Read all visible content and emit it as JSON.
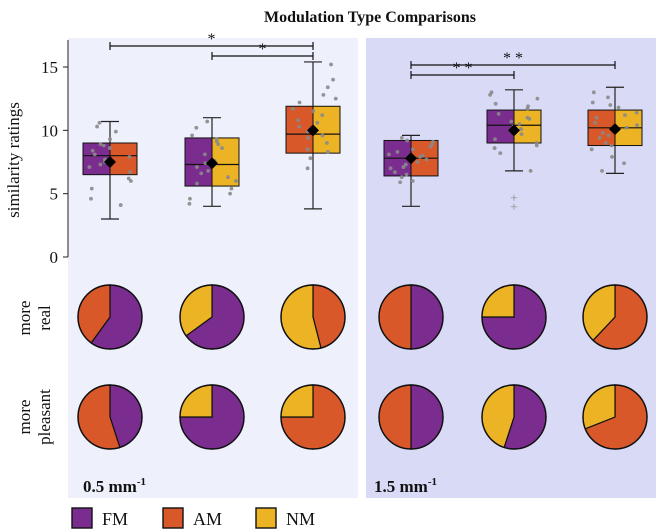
{
  "title": "Modulation Type Comparisons",
  "colors": {
    "FM": "#7b2d8f",
    "AM": "#d8582a",
    "NM": "#ecb425",
    "panel_left_bg": "#eef1fb",
    "panel_right_bg": "#d9dbf6",
    "whisker": "#222222",
    "points": "#8a8a8a",
    "outlier": "#8a8a8a"
  },
  "legend": [
    {
      "label": "FM",
      "color_key": "FM"
    },
    {
      "label": "AM",
      "color_key": "AM"
    },
    {
      "label": "NM",
      "color_key": "NM"
    }
  ],
  "row_labels": {
    "real": [
      "more",
      "real"
    ],
    "pleasant": [
      "more",
      "pleasant"
    ]
  },
  "chart_data": {
    "type": "box",
    "title": "Modulation Type Comparisons",
    "ylabel": "similarity ratings",
    "ylim": [
      0,
      15
    ],
    "yticks": [
      "0",
      "5",
      "10",
      "15"
    ],
    "panels": [
      {
        "label_main": "0.5 mm",
        "label_sup": "-1",
        "boxes": [
          {
            "pair": "FM vs AM",
            "left": "FM",
            "right": "AM",
            "whisker_low": 3.0,
            "q1": 6.5,
            "median": 8.0,
            "q3": 9.0,
            "whisker_high": 10.7,
            "mean": 7.5,
            "outliers": [],
            "points": [
              6.2,
              6.7,
              7.1,
              7.5,
              7.9,
              8.4,
              8.8,
              9.3,
              9.9,
              10.3,
              5.4,
              6.0,
              7.7,
              8.1,
              8.6,
              10.6,
              4.6,
              4.1,
              8.9,
              7.3
            ]
          },
          {
            "pair": "FM vs NM",
            "left": "FM",
            "right": "NM",
            "whisker_low": 4.0,
            "q1": 5.6,
            "median": 7.3,
            "q3": 9.4,
            "whisker_high": 11.0,
            "mean": 7.4,
            "outliers": [],
            "points": [
              4.2,
              5.0,
              5.8,
              6.3,
              6.8,
              7.1,
              7.6,
              8.1,
              8.6,
              9.1,
              9.6,
              10.2,
              10.7,
              4.6,
              6.0,
              7.4,
              8.9,
              9.3,
              5.4,
              6.6
            ]
          },
          {
            "pair": "AM vs NM",
            "left": "AM",
            "right": "NM",
            "whisker_low": 3.8,
            "q1": 8.2,
            "median": 9.7,
            "q3": 11.9,
            "whisker_high": 15.4,
            "mean": 10.0,
            "outliers": [],
            "points": [
              7.0,
              7.8,
              8.5,
              9.0,
              9.4,
              9.9,
              10.3,
              10.8,
              11.2,
              11.7,
              12.2,
              12.8,
              13.4,
              14.0,
              15.2,
              8.3,
              9.6,
              10.6,
              11.5,
              12.5
            ]
          }
        ],
        "significance": [
          {
            "from": 0,
            "to": 2,
            "label": "*",
            "level": 2
          },
          {
            "from": 1,
            "to": 2,
            "label": "*",
            "level": 1
          }
        ],
        "pies_real": [
          {
            "segments": [
              {
                "key": "FM",
                "value": 0.6
              },
              {
                "key": "AM",
                "value": 0.4
              }
            ]
          },
          {
            "segments": [
              {
                "key": "FM",
                "value": 0.65
              },
              {
                "key": "NM",
                "value": 0.35
              }
            ]
          },
          {
            "segments": [
              {
                "key": "AM",
                "value": 0.46
              },
              {
                "key": "NM",
                "value": 0.54
              }
            ]
          }
        ],
        "pies_pleasant": [
          {
            "segments": [
              {
                "key": "FM",
                "value": 0.45
              },
              {
                "key": "AM",
                "value": 0.55
              }
            ]
          },
          {
            "segments": [
              {
                "key": "FM",
                "value": 0.75
              },
              {
                "key": "NM",
                "value": 0.25
              }
            ]
          },
          {
            "segments": [
              {
                "key": "AM",
                "value": 0.75
              },
              {
                "key": "NM",
                "value": 0.25
              }
            ]
          }
        ]
      },
      {
        "label_main": "1.5 mm",
        "label_sup": "-1",
        "boxes": [
          {
            "pair": "FM vs AM",
            "left": "FM",
            "right": "AM",
            "whisker_low": 4.0,
            "q1": 6.4,
            "median": 7.8,
            "q3": 9.2,
            "whisker_high": 9.6,
            "mean": 7.8,
            "outliers": [],
            "points": [
              5.9,
              6.3,
              6.7,
              7.1,
              7.5,
              7.9,
              8.3,
              8.7,
              9.1,
              9.4,
              6.0,
              7.3,
              8.1,
              8.9,
              6.5,
              7.7,
              8.5,
              9.2,
              7.0,
              8.0
            ]
          },
          {
            "pair": "FM vs NM",
            "left": "FM",
            "right": "NM",
            "whisker_low": 6.8,
            "q1": 9.0,
            "median": 10.4,
            "q3": 11.6,
            "whisker_high": 13.2,
            "mean": 10.0,
            "outliers": [
              4.7,
              4.0
            ],
            "points": [
              6.8,
              8.2,
              8.8,
              9.3,
              9.7,
              10.1,
              10.5,
              10.9,
              11.3,
              11.7,
              12.1,
              12.5,
              13.0,
              9.0,
              10.3,
              11.0,
              11.9,
              8.6,
              10.7,
              12.8
            ]
          },
          {
            "pair": "AM vs NM",
            "left": "AM",
            "right": "NM",
            "whisker_low": 6.6,
            "q1": 8.8,
            "median": 10.2,
            "q3": 11.6,
            "whisker_high": 13.4,
            "mean": 10.1,
            "outliers": [],
            "points": [
              6.8,
              7.9,
              8.5,
              9.0,
              9.4,
              9.8,
              10.2,
              10.6,
              11.0,
              11.4,
              11.8,
              12.2,
              12.6,
              13.0,
              8.8,
              9.6,
              10.4,
              11.2,
              12.0,
              7.4
            ]
          }
        ],
        "significance": [
          {
            "from": 0,
            "to": 2,
            "label": "* *",
            "level": 2
          },
          {
            "from": 0,
            "to": 1,
            "label": "* *",
            "level": 1
          }
        ],
        "pies_real": [
          {
            "segments": [
              {
                "key": "FM",
                "value": 0.5
              },
              {
                "key": "AM",
                "value": 0.5
              }
            ]
          },
          {
            "segments": [
              {
                "key": "FM",
                "value": 0.75
              },
              {
                "key": "NM",
                "value": 0.25
              }
            ]
          },
          {
            "segments": [
              {
                "key": "AM",
                "value": 0.62
              },
              {
                "key": "NM",
                "value": 0.38
              }
            ]
          }
        ],
        "pies_pleasant": [
          {
            "segments": [
              {
                "key": "FM",
                "value": 0.5
              },
              {
                "key": "AM",
                "value": 0.5
              }
            ]
          },
          {
            "segments": [
              {
                "key": "FM",
                "value": 0.55
              },
              {
                "key": "NM",
                "value": 0.45
              }
            ]
          },
          {
            "segments": [
              {
                "key": "AM",
                "value": 0.69
              },
              {
                "key": "NM",
                "value": 0.31
              }
            ]
          }
        ]
      }
    ]
  }
}
